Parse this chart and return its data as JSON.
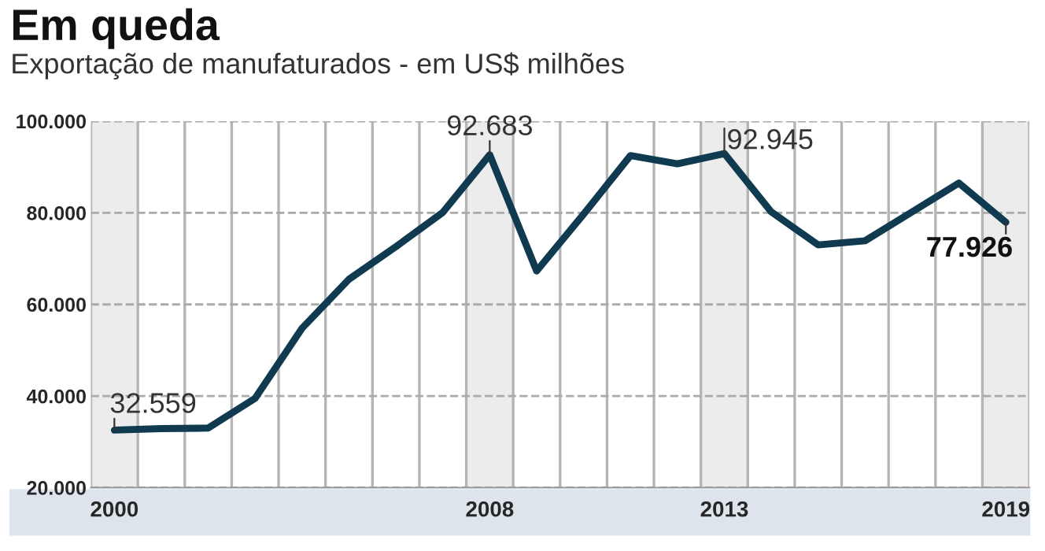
{
  "chart_data": {
    "type": "line",
    "title": "Em queda",
    "subtitle": "Exportação de manufaturados - em US$ milhões",
    "x": [
      2000,
      2001,
      2002,
      2003,
      2004,
      2005,
      2006,
      2007,
      2008,
      2009,
      2010,
      2011,
      2012,
      2013,
      2014,
      2015,
      2016,
      2017,
      2018,
      2019
    ],
    "series": [
      {
        "color": "#0f3a4f",
        "values": [
          32559,
          32900,
          33000,
          39500,
          54800,
          65500,
          72600,
          80100,
          92683,
          67300,
          79700,
          92500,
          90700,
          92945,
          80200,
          73000,
          73900,
          80200,
          86500,
          77926
        ],
        "value_labels": [
          "32.559",
          null,
          null,
          null,
          null,
          null,
          null,
          null,
          "92.683",
          null,
          null,
          null,
          null,
          "92.945",
          null,
          null,
          null,
          null,
          null,
          "77.926"
        ]
      }
    ],
    "xlim": [
      1999.5,
      2019.5
    ],
    "xticks": [
      2000,
      2008,
      2013,
      2019
    ],
    "ylim": [
      20000,
      100000
    ],
    "yticks": [
      {
        "value": 20000,
        "label": "20.000"
      },
      {
        "value": 40000,
        "label": "40.000"
      },
      {
        "value": 60000,
        "label": "60.000"
      },
      {
        "value": 80000,
        "label": "80.000"
      },
      {
        "value": 100000,
        "label": "100.000"
      }
    ],
    "bands": [
      {
        "axis": "x",
        "from": 1999.5,
        "to": 2000.5,
        "color": "#ececec"
      },
      {
        "axis": "x",
        "from": 2007.5,
        "to": 2008.5,
        "color": "#ececec"
      },
      {
        "axis": "x",
        "from": 2012.5,
        "to": 2013.5,
        "color": "#ececec"
      },
      {
        "axis": "x",
        "from": 2018.5,
        "to": 2019.5,
        "color": "#ececec"
      }
    ],
    "grid": true,
    "marker": "none",
    "line_style": "solid",
    "legend": false
  }
}
